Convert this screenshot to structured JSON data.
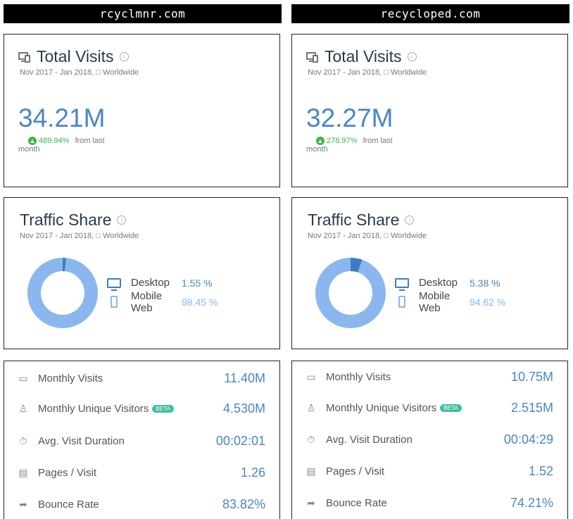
{
  "colors": {
    "accent": "#4a86c5",
    "growth": "#3cb44a",
    "desktop": "#3f7bc4",
    "mobile": "#8ab8ee",
    "beta": "#3fbf9f"
  },
  "columns": [
    {
      "site": "rcyclmnr.com",
      "total_visits": {
        "title": "Total Visits",
        "subtitle": "Nov 2017 - Jan 2018, □ Worldwide",
        "value": "34.21M",
        "growth_pct": "489.94%",
        "growth_text": "from last",
        "growth_text2": "month"
      },
      "traffic_share": {
        "title": "Traffic Share",
        "subtitle": "Nov 2017 - Jan 2018, □ Worldwide",
        "desktop_label": "Desktop",
        "desktop_pct": "1.55 %",
        "desktop_value": 1.55,
        "mobile_label": "Mobile Web",
        "mobile_pct": "98.45 %",
        "mobile_value": 98.45
      },
      "stats": [
        {
          "icon": "monthly-visits-icon",
          "label": "Monthly Visits",
          "value": "11.40M"
        },
        {
          "icon": "unique-visitors-icon",
          "label": "Monthly Unique Visitors",
          "beta": "BETA",
          "value": "4.530M"
        },
        {
          "icon": "duration-icon",
          "label": "Avg. Visit Duration",
          "value": "00:02:01"
        },
        {
          "icon": "pages-icon",
          "label": "Pages / Visit",
          "value": "1.26"
        },
        {
          "icon": "bounce-icon",
          "label": "Bounce Rate",
          "value": "83.82%"
        }
      ]
    },
    {
      "site": "recycloped.com",
      "total_visits": {
        "title": "Total Visits",
        "subtitle": "Nov 2017 - Jan 2018, □ Worldwide",
        "value": "32.27M",
        "growth_pct": "278.97%",
        "growth_text": "from last",
        "growth_text2": "month"
      },
      "traffic_share": {
        "title": "Traffic Share",
        "subtitle": "Nov 2017 - Jan 2018, □ Worldwide",
        "desktop_label": "Desktop",
        "desktop_pct": "5.38 %",
        "desktop_value": 5.38,
        "mobile_label": "Mobile Web",
        "mobile_pct": "94.62 %",
        "mobile_value": 94.62
      },
      "stats": [
        {
          "icon": "monthly-visits-icon",
          "label": "Monthly Visits",
          "value": "10.75M"
        },
        {
          "icon": "unique-visitors-icon",
          "label": "Monthly Unique Visitors",
          "beta": "BETA",
          "value": "2.515M"
        },
        {
          "icon": "duration-icon",
          "label": "Avg. Visit Duration",
          "value": "00:04:29"
        },
        {
          "icon": "pages-icon",
          "label": "Pages / Visit",
          "value": "1.52"
        },
        {
          "icon": "bounce-icon",
          "label": "Bounce Rate",
          "value": "74.21%"
        }
      ]
    }
  ]
}
